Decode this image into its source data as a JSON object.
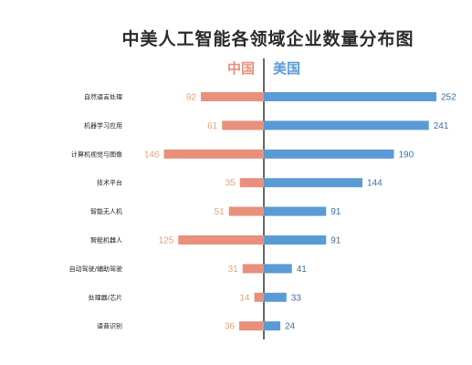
{
  "chart_data": {
    "type": "bar",
    "title": "中美人工智能各领域企业数量分布图",
    "categories": [
      "自然语言处理",
      "机器学习应用",
      "计算机视觉与图像",
      "技术平台",
      "智能无人机",
      "智能机器人",
      "自动驾驶/辅助驾驶",
      "处理器/芯片",
      "语音识别"
    ],
    "series": [
      {
        "name": "中国",
        "color": "#e8907c",
        "label_color": "#e8a07c",
        "values": [
          92,
          61,
          146,
          35,
          51,
          125,
          31,
          14,
          36
        ]
      },
      {
        "name": "美国",
        "color": "#5b9bd5",
        "label_color": "#3d6fa8",
        "values": [
          252,
          241,
          190,
          144,
          91,
          91,
          41,
          33,
          24
        ]
      }
    ],
    "orientation": "diverging-horizontal",
    "legend_position": "top-center",
    "grid": false
  }
}
